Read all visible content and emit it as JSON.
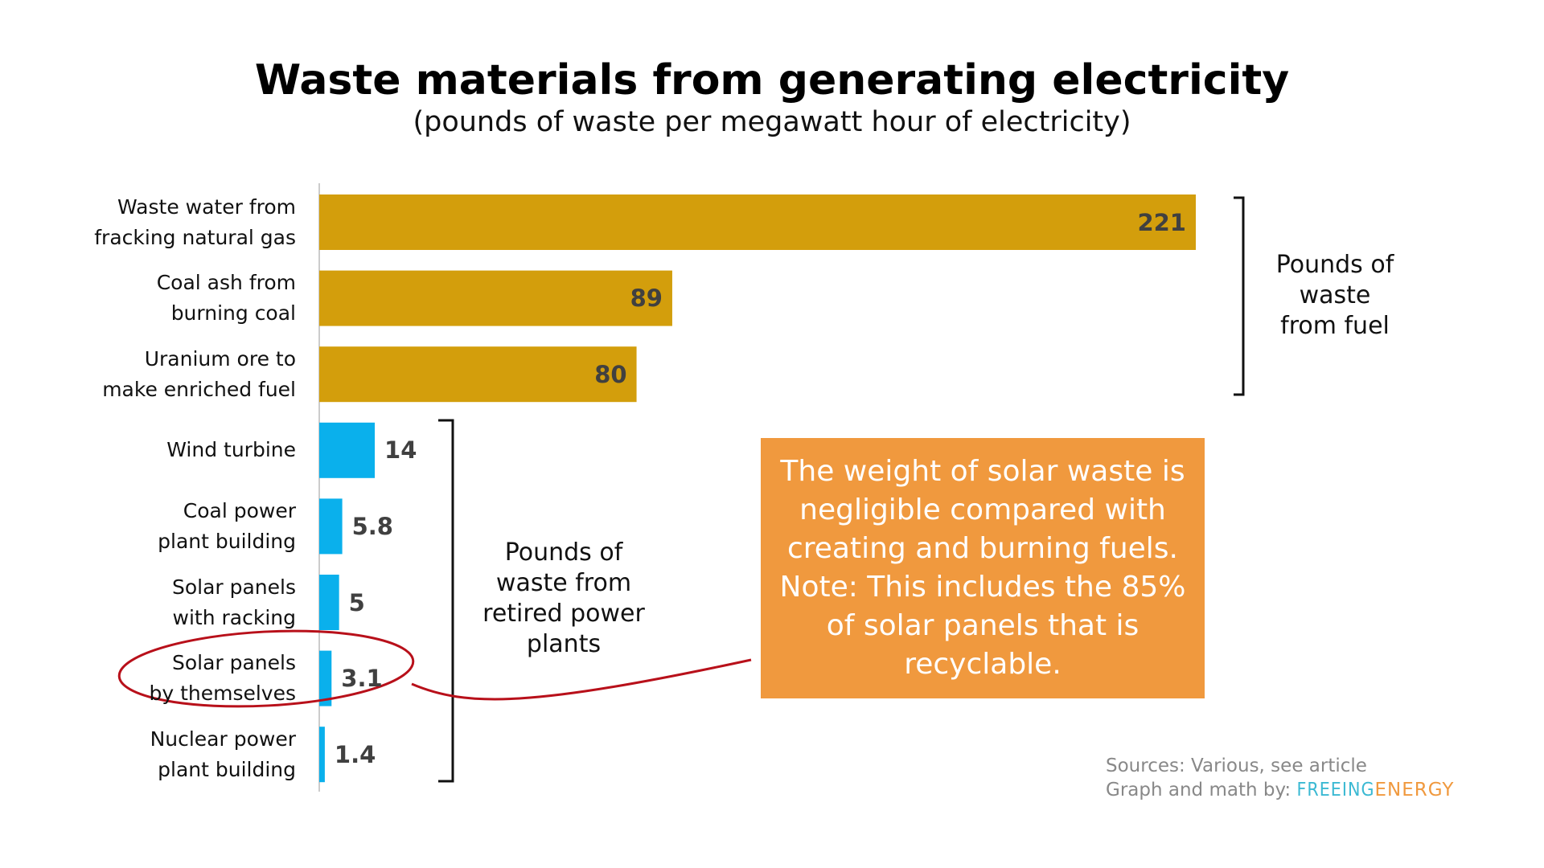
{
  "chart_data": {
    "type": "bar",
    "orientation": "horizontal",
    "title": "Waste materials from generating electricity",
    "subtitle": "(pounds of waste per megawatt hour of electricity)",
    "categories": [
      "Waste water from\nfracking natural gas",
      "Coal ash from\nburning coal",
      "Uranium ore to\nmake enriched fuel",
      "Wind turbine",
      "Coal power\nplant building",
      "Solar panels\nwith racking",
      "Solar panels\nby themselves",
      "Nuclear power\nplant building"
    ],
    "values": [
      221,
      89,
      80,
      14,
      5.8,
      5,
      3.1,
      1.4
    ],
    "colors": [
      "#d39e0c",
      "#d39e0c",
      "#d39e0c",
      "#0ab0ec",
      "#0ab0ec",
      "#0ab0ec",
      "#0ab0ec",
      "#0ab0ec"
    ],
    "annotations": {
      "fuel_bracket": "Pounds of\nwaste\nfrom fuel",
      "plants_bracket": "Pounds of\nwaste from\nretired power\nplants",
      "callout": "The weight of solar waste is\nnegligible compared with\ncreating and burning fuels.\nNote: This includes the 85%\nof solar panels that is\nrecyclable.",
      "sources": "Sources: Various, see article",
      "credit": "Graph and math by:",
      "brand_1": "FREEING",
      "brand_2": "ENERGY"
    }
  }
}
